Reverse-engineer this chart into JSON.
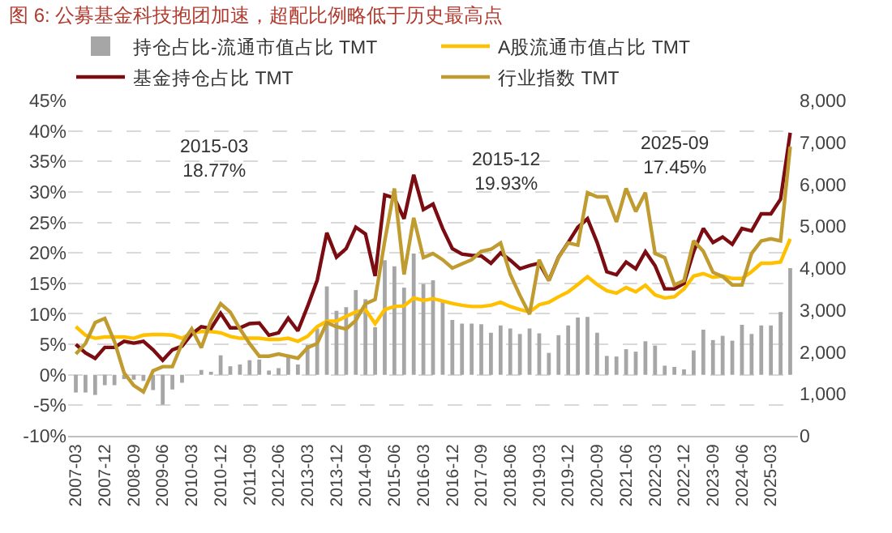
{
  "chart_data": {
    "type": "line",
    "title": "图 6: 公募基金科技抱团加速，超配比例略低于历史最高点",
    "categories": [
      "2007-03",
      null,
      null,
      "2007-12",
      null,
      null,
      "2008-09",
      null,
      null,
      "2009-06",
      null,
      null,
      "2010-03",
      null,
      null,
      "2010-12",
      null,
      null,
      "2011-09",
      null,
      null,
      "2012-06",
      null,
      null,
      "2013-03",
      null,
      null,
      "2013-12",
      null,
      null,
      "2014-09",
      null,
      null,
      "2015-06",
      null,
      null,
      "2016-03",
      null,
      null,
      "2016-12",
      null,
      null,
      "2017-09",
      null,
      null,
      "2018-06",
      null,
      null,
      "2019-03",
      null,
      null,
      "2019-12",
      null,
      null,
      "2020-09",
      null,
      null,
      "2021-06",
      null,
      null,
      "2022-03",
      null,
      null,
      "2022-12",
      null,
      null,
      "2023-09",
      null,
      null,
      "2024-06",
      null,
      null,
      "2025-03",
      null,
      null
    ],
    "series": [
      {
        "name": "持仓占比-流通市值占比 TMT",
        "type": "bar",
        "color": "#a6a6a6",
        "values": [
          -2.9,
          -2.9,
          -3.3,
          -1.7,
          -1.7,
          -0.7,
          -0.8,
          -1.0,
          -2.5,
          -4.9,
          -2.4,
          -1.3,
          null,
          0.8,
          0.5,
          3.2,
          1.4,
          1.7,
          2.4,
          2.5,
          0.7,
          1.1,
          3.3,
          1.7,
          4.9,
          7.6,
          14.5,
          10.5,
          11.1,
          13.9,
          12.4,
          7.8,
          18.8,
          17.8,
          14.3,
          19.9,
          14.9,
          15.5,
          11.9,
          9.0,
          8.4,
          8.4,
          8.3,
          6.9,
          8.1,
          7.6,
          6.7,
          7.6,
          6.8,
          3.6,
          6.5,
          8.1,
          9.4,
          9.5,
          6.9,
          3.1,
          3.0,
          4.2,
          3.8,
          5.5,
          4.8,
          1.5,
          1.3,
          0.9,
          4.0,
          7.4,
          5.7,
          6.4,
          5.6,
          8.2,
          6.7,
          8.1,
          8.1,
          10.3,
          17.5
        ]
      },
      {
        "name": "A股流通市值占比 TMT",
        "color": "#ffc000",
        "values": [
          7.9,
          6.5,
          6.0,
          6.2,
          6.2,
          6.2,
          6.0,
          6.5,
          6.6,
          6.6,
          6.5,
          6.0,
          6.9,
          7.1,
          7.1,
          6.9,
          6.3,
          6.0,
          6.0,
          6.0,
          5.8,
          5.8,
          6.0,
          5.5,
          6.3,
          7.9,
          8.8,
          8.8,
          9.6,
          10.3,
          10.7,
          8.4,
          10.7,
          11.2,
          11.3,
          12.6,
          12.2,
          12.5,
          12.1,
          11.7,
          11.4,
          11.2,
          11.2,
          11.4,
          11.9,
          11.2,
          10.7,
          10.3,
          11.5,
          11.9,
          12.8,
          13.6,
          14.8,
          16.1,
          14.8,
          13.8,
          13.4,
          14.3,
          13.6,
          14.7,
          13.1,
          12.6,
          12.8,
          14.1,
          16.2,
          16.6,
          16.0,
          16.2,
          15.8,
          15.8,
          16.9,
          18.3,
          18.3,
          18.5,
          22.3
        ]
      },
      {
        "name": "基金持仓占比 TMT",
        "color": "#7b0c12",
        "values": [
          5.0,
          3.6,
          2.7,
          4.5,
          4.5,
          5.5,
          5.2,
          5.5,
          4.1,
          2.4,
          4.1,
          4.7,
          6.7,
          7.9,
          7.6,
          10.1,
          7.7,
          7.7,
          8.4,
          8.5,
          6.5,
          6.9,
          9.3,
          7.2,
          11.2,
          15.5,
          23.3,
          19.3,
          20.7,
          24.2,
          23.1,
          16.2,
          29.5,
          29.0,
          25.6,
          32.8,
          27.1,
          28.0,
          24.0,
          20.7,
          19.8,
          19.6,
          19.5,
          18.3,
          20.0,
          18.8,
          17.4,
          17.9,
          18.3,
          15.5,
          19.3,
          21.7,
          24.2,
          25.6,
          21.7,
          16.9,
          16.4,
          18.5,
          17.4,
          20.2,
          17.9,
          14.1,
          14.1,
          15.0,
          20.2,
          24.0,
          21.7,
          22.6,
          21.4,
          24.0,
          23.6,
          26.4,
          26.4,
          28.8,
          39.7
        ]
      },
      {
        "name": "行业指数 TMT",
        "axis": "y2",
        "color": "#bf9b30",
        "values": [
          1950,
          2200,
          2700,
          2800,
          2250,
          1500,
          1200,
          1050,
          1550,
          1650,
          1650,
          2200,
          2550,
          2100,
          2750,
          3150,
          2950,
          2550,
          2200,
          1900,
          1900,
          1950,
          1900,
          1850,
          2100,
          2200,
          2700,
          2600,
          2550,
          2750,
          3150,
          3250,
          4650,
          5900,
          3850,
          5200,
          4250,
          4350,
          4200,
          4000,
          4100,
          4200,
          4400,
          4450,
          4600,
          3850,
          3350,
          2900,
          4200,
          3700,
          4250,
          4600,
          4550,
          5800,
          5700,
          5700,
          5100,
          5900,
          5350,
          5800,
          4350,
          4250,
          3600,
          3700,
          4650,
          4400,
          3900,
          3800,
          3600,
          3600,
          4350,
          4650,
          4700,
          4650,
          6900
        ]
      }
    ],
    "ylim": [
      -10,
      45
    ],
    "yticks": [
      {
        "value": -10,
        "label": "-10%"
      },
      {
        "value": -5,
        "label": "-5%"
      },
      {
        "value": 0,
        "label": "0%"
      },
      {
        "value": 5,
        "label": "5%"
      },
      {
        "value": 10,
        "label": "10%"
      },
      {
        "value": 15,
        "label": "15%"
      },
      {
        "value": 20,
        "label": "20%"
      },
      {
        "value": 25,
        "label": "25%"
      },
      {
        "value": 30,
        "label": "30%"
      },
      {
        "value": 35,
        "label": "35%"
      },
      {
        "value": 40,
        "label": "40%"
      },
      {
        "value": 45,
        "label": "45%"
      }
    ],
    "y2lim": [
      0,
      8000
    ],
    "y2ticks": [
      0,
      {
        "value": 1000,
        "label": "1,000"
      },
      {
        "value": 2000,
        "label": "2,000"
      },
      {
        "value": 3000,
        "label": "3,000"
      },
      {
        "value": 4000,
        "label": "4,000"
      },
      {
        "value": 5000,
        "label": "5,000"
      },
      {
        "value": 6000,
        "label": "6,000"
      },
      {
        "value": 7000,
        "label": "7,000"
      },
      {
        "value": 8000,
        "label": "8,000"
      }
    ],
    "annotations": [
      "2015-03\n18.77%",
      "2015-12\n19.93%",
      "2025-09\n17.45%"
    ],
    "grid": "y",
    "legend": "top",
    "marker": "none",
    "line_style": "solid"
  }
}
